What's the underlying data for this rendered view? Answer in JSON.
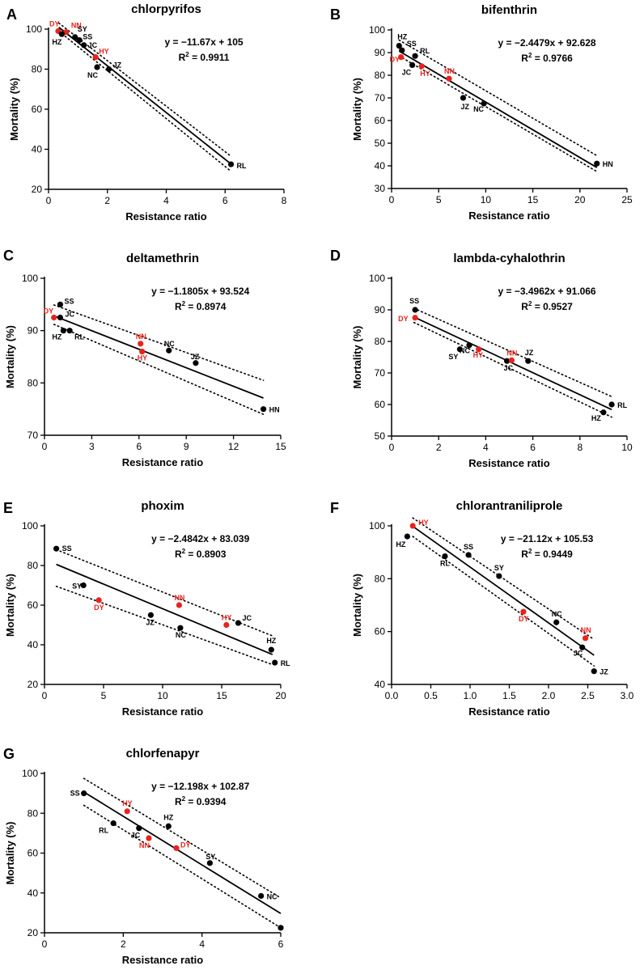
{
  "figure": {
    "axis_color": "#000000",
    "highlight_color": "#e8231d",
    "point_color": "#000000"
  },
  "chart_data": [
    {
      "panel": "A",
      "type": "scatter",
      "title": "chlorpyrifos",
      "xlabel": "Resistance ratio",
      "ylabel": "Mortality (%)",
      "xlim": [
        0,
        8
      ],
      "ylim": [
        20,
        100
      ],
      "xticks": [
        0,
        2,
        4,
        6,
        8
      ],
      "yticks": [
        20,
        40,
        60,
        80,
        100
      ],
      "equation": "y = −11.67x + 105",
      "r2_prefix": "R",
      "r2_exp": "2",
      "r2_value": " = 0.9911",
      "fit": {
        "slope": -11.67,
        "intercept": 105,
        "x_range": [
          0.35,
          6.2
        ]
      },
      "ci_band": {
        "upper": [
          [
            0.35,
            103.0
          ],
          [
            6.2,
            36.5
          ]
        ],
        "lower": [
          [
            0.35,
            99.0
          ],
          [
            6.2,
            29.0
          ]
        ]
      },
      "points": [
        {
          "label": "DY",
          "x": 0.33,
          "y": 99,
          "highlight": true
        },
        {
          "label": "NN",
          "x": 0.6,
          "y": 98.5,
          "highlight": true
        },
        {
          "label": "HZ",
          "x": 0.45,
          "y": 97.5,
          "highlight": false
        },
        {
          "label": "SY",
          "x": 0.9,
          "y": 96,
          "highlight": false
        },
        {
          "label": "SS",
          "x": 1.05,
          "y": 94.5,
          "highlight": false
        },
        {
          "label": "JC",
          "x": 1.2,
          "y": 92,
          "highlight": false
        },
        {
          "label": "HY",
          "x": 1.6,
          "y": 86,
          "highlight": true
        },
        {
          "label": "NC",
          "x": 1.65,
          "y": 81,
          "highlight": false
        },
        {
          "label": "JZ",
          "x": 2.05,
          "y": 80,
          "highlight": false
        },
        {
          "label": "RL",
          "x": 6.2,
          "y": 32.5,
          "highlight": false
        }
      ]
    },
    {
      "panel": "B",
      "type": "scatter",
      "title": "bifenthrin",
      "xlabel": "Resistance ratio",
      "ylabel": "Mortality (%)",
      "xlim": [
        0,
        25
      ],
      "ylim": [
        30,
        100
      ],
      "xticks": [
        0,
        5,
        10,
        15,
        20,
        25
      ],
      "yticks": [
        30,
        40,
        50,
        60,
        70,
        80,
        90,
        100
      ],
      "equation": "y = −2.4479x + 92.628",
      "r2_prefix": "R",
      "r2_exp": "2",
      "r2_value": " = 0.9766",
      "fit": {
        "slope": -2.4479,
        "intercept": 92.628,
        "x_range": [
          0.8,
          21.8
        ]
      },
      "ci_band": {
        "upper": [
          [
            0.8,
            95.5
          ],
          [
            21.8,
            44.5
          ]
        ],
        "lower": [
          [
            0.8,
            88.5
          ],
          [
            21.8,
            37.5
          ]
        ]
      },
      "points": [
        {
          "label": "HZ",
          "x": 0.8,
          "y": 93,
          "highlight": false
        },
        {
          "label": "SS",
          "x": 1.1,
          "y": 91,
          "highlight": false
        },
        {
          "label": "RL",
          "x": 2.5,
          "y": 88.5,
          "highlight": false
        },
        {
          "label": "DY",
          "x": 1.0,
          "y": 88,
          "highlight": true
        },
        {
          "label": "JC",
          "x": 2.2,
          "y": 84.5,
          "highlight": false
        },
        {
          "label": "HY",
          "x": 3.2,
          "y": 84,
          "highlight": true
        },
        {
          "label": "NN",
          "x": 6.1,
          "y": 78.5,
          "highlight": true
        },
        {
          "label": "JZ",
          "x": 7.6,
          "y": 70,
          "highlight": false
        },
        {
          "label": "NC",
          "x": 9.8,
          "y": 67.5,
          "highlight": false
        },
        {
          "label": "HN",
          "x": 21.8,
          "y": 41,
          "highlight": false
        }
      ]
    },
    {
      "panel": "C",
      "type": "scatter",
      "title": "deltamethrin",
      "xlabel": "Resistance ratio",
      "ylabel": "Mortality (%)",
      "xlim": [
        0,
        15
      ],
      "ylim": [
        70,
        100
      ],
      "xticks": [
        0,
        3,
        6,
        9,
        12,
        15
      ],
      "yticks": [
        70,
        80,
        90,
        100
      ],
      "equation": "y = −1.1805x + 93.524",
      "r2_prefix": "R",
      "r2_exp": "2",
      "r2_value": " = 0.8974",
      "fit": {
        "slope": -1.1805,
        "intercept": 93.524,
        "x_range": [
          0.6,
          13.9
        ]
      },
      "ci_band": {
        "upper": [
          [
            0.6,
            94.9
          ],
          [
            13.9,
            80.5
          ]
        ],
        "lower": [
          [
            0.6,
            91.2
          ],
          [
            13.9,
            74.0
          ]
        ]
      },
      "points": [
        {
          "label": "SS",
          "x": 1.0,
          "y": 95,
          "highlight": false
        },
        {
          "label": "DY",
          "x": 0.6,
          "y": 92.5,
          "highlight": true
        },
        {
          "label": "JC",
          "x": 1.0,
          "y": 92.5,
          "highlight": false
        },
        {
          "label": "HZ",
          "x": 1.2,
          "y": 90,
          "highlight": false
        },
        {
          "label": "RL",
          "x": 1.6,
          "y": 90,
          "highlight": false
        },
        {
          "label": "NN",
          "x": 6.1,
          "y": 87.5,
          "highlight": true
        },
        {
          "label": "HY",
          "x": 6.2,
          "y": 86,
          "highlight": true
        },
        {
          "label": "NC",
          "x": 7.9,
          "y": 86.2,
          "highlight": false
        },
        {
          "label": "JZ",
          "x": 9.6,
          "y": 83.8,
          "highlight": false
        },
        {
          "label": "HN",
          "x": 13.9,
          "y": 75,
          "highlight": false
        }
      ]
    },
    {
      "panel": "D",
      "type": "scatter",
      "title": "lambda-cyhalothrin",
      "xlabel": "Resistance ratio",
      "ylabel": "Mortality (%)",
      "xlim": [
        0,
        10
      ],
      "ylim": [
        50,
        100
      ],
      "xticks": [
        0,
        2,
        4,
        6,
        8,
        10
      ],
      "yticks": [
        50,
        60,
        70,
        80,
        90,
        100
      ],
      "equation": "y = −3.4962x + 91.066",
      "r2_prefix": "R",
      "r2_exp": "2",
      "r2_value": " = 0.9527",
      "fit": {
        "slope": -3.4962,
        "intercept": 91.066,
        "x_range": [
          0.95,
          9.35
        ]
      },
      "ci_band": {
        "upper": [
          [
            0.95,
            90.5
          ],
          [
            9.35,
            62.5
          ]
        ],
        "lower": [
          [
            0.95,
            86.0
          ],
          [
            9.35,
            56.0
          ]
        ]
      },
      "points": [
        {
          "label": "SS",
          "x": 1.0,
          "y": 90,
          "highlight": false
        },
        {
          "label": "DY",
          "x": 1.0,
          "y": 87.5,
          "highlight": true
        },
        {
          "label": "SY",
          "x": 2.9,
          "y": 77.5,
          "highlight": false
        },
        {
          "label": "NC",
          "x": 3.3,
          "y": 78.8,
          "highlight": false
        },
        {
          "label": "HY",
          "x": 3.7,
          "y": 77.5,
          "highlight": true
        },
        {
          "label": "JC",
          "x": 4.9,
          "y": 73.8,
          "highlight": false
        },
        {
          "label": "NN",
          "x": 5.1,
          "y": 74,
          "highlight": true
        },
        {
          "label": "JZ",
          "x": 5.8,
          "y": 73.8,
          "highlight": false
        },
        {
          "label": "HZ",
          "x": 9.0,
          "y": 57.5,
          "highlight": false
        },
        {
          "label": "RL",
          "x": 9.35,
          "y": 60,
          "highlight": false
        }
      ]
    },
    {
      "panel": "E",
      "type": "scatter",
      "title": "phoxim",
      "xlabel": "Resistance ratio",
      "ylabel": "Mortality (%)",
      "xlim": [
        0,
        20
      ],
      "ylim": [
        20,
        100
      ],
      "xticks": [
        0,
        5,
        10,
        15,
        20
      ],
      "yticks": [
        20,
        40,
        60,
        80,
        100
      ],
      "equation": "y = −2.4842x + 83.039",
      "r2_prefix": "R",
      "r2_exp": "2",
      "r2_value": " = 0.8903",
      "fit": {
        "slope": -2.4842,
        "intercept": 83.039,
        "x_range": [
          1.0,
          19.3
        ]
      },
      "ci_band": {
        "upper": [
          [
            1.0,
            88.0
          ],
          [
            19.3,
            44.5
          ]
        ],
        "lower": [
          [
            1.0,
            69.5
          ],
          [
            19.3,
            30.0
          ]
        ]
      },
      "points": [
        {
          "label": "SS",
          "x": 1.0,
          "y": 88.5,
          "highlight": false
        },
        {
          "label": "SY",
          "x": 3.3,
          "y": 70,
          "highlight": false
        },
        {
          "label": "DY",
          "x": 4.6,
          "y": 62.5,
          "highlight": true
        },
        {
          "label": "JZ",
          "x": 9.0,
          "y": 55,
          "highlight": false
        },
        {
          "label": "NN",
          "x": 11.4,
          "y": 60,
          "highlight": true
        },
        {
          "label": "NC",
          "x": 11.5,
          "y": 48.5,
          "highlight": false
        },
        {
          "label": "HY",
          "x": 15.4,
          "y": 50,
          "highlight": true
        },
        {
          "label": "JC",
          "x": 16.4,
          "y": 51,
          "highlight": false
        },
        {
          "label": "HZ",
          "x": 19.2,
          "y": 37.5,
          "highlight": false
        },
        {
          "label": "RL",
          "x": 19.5,
          "y": 31,
          "highlight": false
        }
      ]
    },
    {
      "panel": "F",
      "type": "scatter",
      "title": "chlorantraniliprole",
      "xlabel": "Resistance ratio",
      "ylabel": "Mortality (%)",
      "xlim": [
        0,
        3.0
      ],
      "ylim": [
        40,
        100
      ],
      "xticks": [
        0.0,
        0.5,
        1.0,
        1.5,
        2.0,
        2.5,
        3.0
      ],
      "tick_format": "fixed1",
      "yticks": [
        40,
        60,
        80,
        100
      ],
      "equation": "y = −21.12x + 105.53",
      "r2_prefix": "R",
      "r2_exp": "2",
      "r2_value": " = 0.9449",
      "fit": {
        "slope": -21.12,
        "intercept": 105.53,
        "x_range": [
          0.27,
          2.58
        ]
      },
      "ci_band": {
        "upper": [
          [
            0.27,
            103.0
          ],
          [
            2.58,
            57.0
          ]
        ],
        "lower": [
          [
            0.27,
            96.0
          ],
          [
            2.58,
            47.0
          ]
        ]
      },
      "points": [
        {
          "label": "HY",
          "x": 0.27,
          "y": 100,
          "highlight": true
        },
        {
          "label": "HZ",
          "x": 0.2,
          "y": 96,
          "highlight": false
        },
        {
          "label": "SS",
          "x": 0.98,
          "y": 89,
          "highlight": false
        },
        {
          "label": "RL",
          "x": 0.68,
          "y": 88.5,
          "highlight": false
        },
        {
          "label": "SY",
          "x": 1.37,
          "y": 81,
          "highlight": false
        },
        {
          "label": "DY",
          "x": 1.68,
          "y": 67.5,
          "highlight": true
        },
        {
          "label": "NC",
          "x": 2.1,
          "y": 63.5,
          "highlight": false
        },
        {
          "label": "NN",
          "x": 2.47,
          "y": 57.5,
          "highlight": true
        },
        {
          "label": "JC",
          "x": 2.43,
          "y": 54,
          "highlight": false
        },
        {
          "label": "JZ",
          "x": 2.58,
          "y": 45,
          "highlight": false
        }
      ]
    },
    {
      "panel": "G",
      "type": "scatter",
      "title": "chlorfenapyr",
      "xlabel": "Resistance ratio",
      "ylabel": "Mortality (%)",
      "xlim": [
        0,
        6
      ],
      "ylim": [
        20,
        100
      ],
      "xticks": [
        0,
        2,
        4,
        6
      ],
      "yticks": [
        20,
        40,
        60,
        80,
        100
      ],
      "equation": "y = −12.198x + 102.87",
      "r2_prefix": "R",
      "r2_exp": "2",
      "r2_value": " = 0.9394",
      "fit": {
        "slope": -12.198,
        "intercept": 102.87,
        "x_range": [
          1.0,
          6.0
        ]
      },
      "ci_band": {
        "upper": [
          [
            1.0,
            97.5
          ],
          [
            6.0,
            37.5
          ]
        ],
        "lower": [
          [
            1.0,
            84.0
          ],
          [
            6.0,
            22.5
          ]
        ]
      },
      "points": [
        {
          "label": "SS",
          "x": 1.0,
          "y": 90,
          "highlight": false
        },
        {
          "label": "HY",
          "x": 2.1,
          "y": 81,
          "highlight": true
        },
        {
          "label": "RL",
          "x": 1.75,
          "y": 75,
          "highlight": false
        },
        {
          "label": "HZ",
          "x": 3.15,
          "y": 73.5,
          "highlight": false
        },
        {
          "label": "JC",
          "x": 2.4,
          "y": 72.5,
          "highlight": false
        },
        {
          "label": "NN",
          "x": 2.65,
          "y": 67.5,
          "highlight": true
        },
        {
          "label": "DY",
          "x": 3.35,
          "y": 62.5,
          "highlight": true
        },
        {
          "label": "SY",
          "x": 4.2,
          "y": 55,
          "highlight": false
        },
        {
          "label": "NC",
          "x": 5.5,
          "y": 38.5,
          "highlight": false
        },
        {
          "label": "",
          "x": 6.0,
          "y": 22.5,
          "highlight": false
        }
      ]
    }
  ]
}
